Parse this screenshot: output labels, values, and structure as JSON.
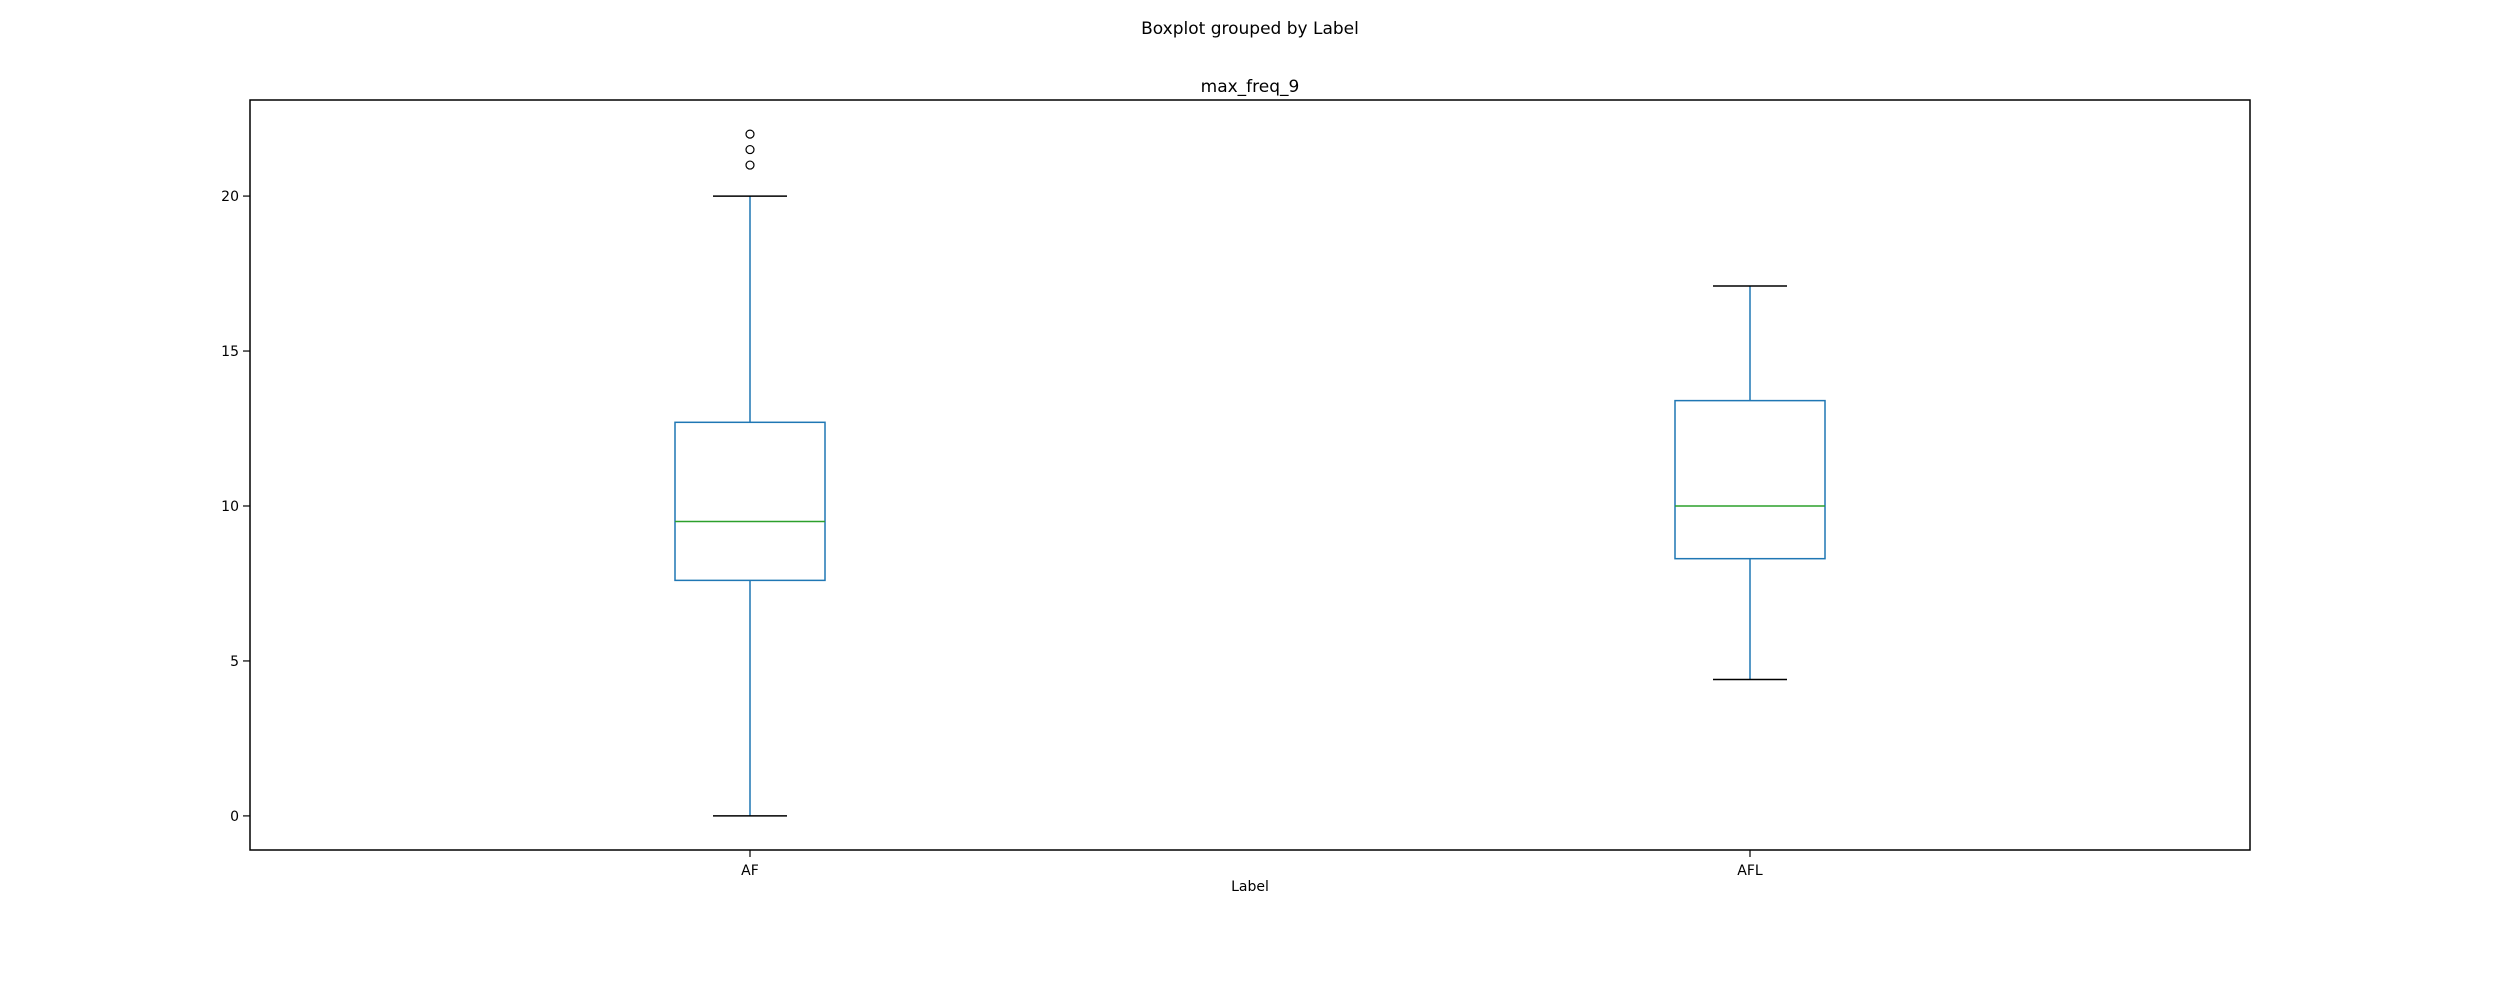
{
  "figure": {
    "suptitle": "Boxplot grouped by Label"
  },
  "chart_data": {
    "type": "boxplot",
    "title": "max_freq_9",
    "xlabel": "Label",
    "ylabel": "",
    "ylim": [
      -1.1,
      23.1
    ],
    "yticks": [
      0,
      5,
      10,
      15,
      20
    ],
    "ytick_labels": [
      "0",
      "5",
      "10",
      "15",
      "20"
    ],
    "grid": false,
    "categories": [
      "AF",
      "AFL"
    ],
    "boxes": [
      {
        "category": "AF",
        "whisker_low": 0,
        "q1": 7.6,
        "median": 9.5,
        "q3": 12.7,
        "whisker_high": 20,
        "outliers": [
          21,
          21.5,
          22
        ]
      },
      {
        "category": "AFL",
        "whisker_low": 4.4,
        "q1": 8.3,
        "median": 10.0,
        "q3": 13.4,
        "whisker_high": 17.1,
        "outliers": []
      }
    ],
    "colors": {
      "box": "#1f77b4",
      "whisker": "#1f77b4",
      "cap": "#000000",
      "median": "#2ca02c",
      "flier": "#000000",
      "axes": "#000000"
    }
  }
}
